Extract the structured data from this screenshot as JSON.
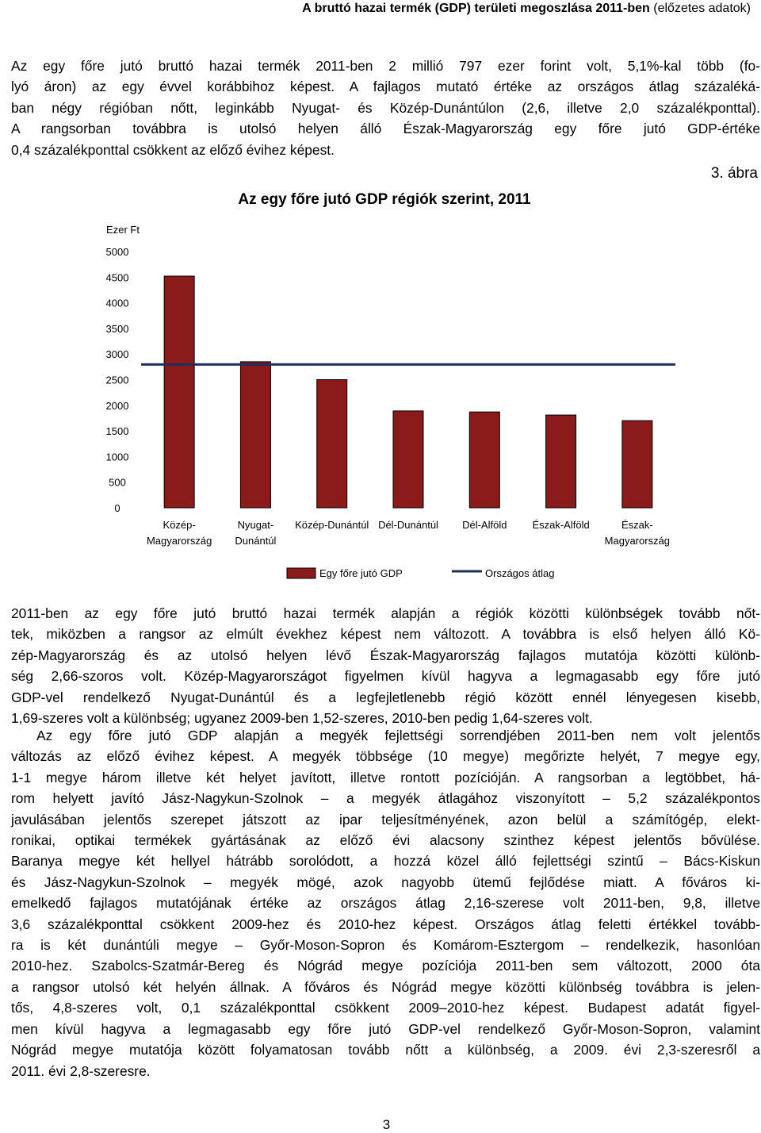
{
  "header": {
    "title": "A bruttó hazai termék (GDP) területi megoszlása 2011-ben",
    "subtitle": "(előzetes adatok)"
  },
  "intro_paragraph": [
    "Az egy főre jutó bruttó hazai termék 2011-ben 2 millió 797 ezer forint volt, 5,1%-kal több (fo-",
    "lyó áron) az egy évvel korábbihoz képest. A fajlagos mutató értéke az országos átlag százaléká-",
    "ban négy régióban nőtt, leginkább Nyugat- és Közép-Dunántúlon (2,6, illetve 2,0 százalékponttal).",
    "A rangsorban továbbra is utolsó helyen álló Észak-Magyarország egy főre jutó GDP-értéke",
    "0,4 százalékponttal csökkent az előző évihez képest."
  ],
  "figure": {
    "number": "3. ábra"
  },
  "chart_data": {
    "type": "bar",
    "title": "Az egy főre jutó GDP régiók szerint, 2011",
    "ylabel": "Ezer Ft",
    "ylim": [
      0,
      5000
    ],
    "yticks": [
      "5000",
      "4500",
      "4000",
      "3500",
      "3000",
      "2500",
      "2000",
      "1500",
      "1000",
      "500",
      "0"
    ],
    "categories": [
      [
        "Közép-",
        "Magyarország"
      ],
      [
        "Nyugat-",
        "Dunántúl"
      ],
      [
        "Közép-Dunántúl"
      ],
      [
        "Dél-Dunántúl"
      ],
      [
        "Dél-Alföld"
      ],
      [
        "Észak-Alföld"
      ],
      [
        "Észak-",
        "Magyarország"
      ]
    ],
    "series": [
      {
        "name": "Egy főre jutó GDP",
        "type": "bar",
        "color": "#8b1a1a",
        "values": [
          4520,
          2850,
          2500,
          1890,
          1870,
          1810,
          1700
        ]
      },
      {
        "name": "Országos átlag",
        "type": "line",
        "color": "#1f2f5a",
        "value": 2797
      }
    ],
    "grid": false,
    "legend": "bottom"
  },
  "body_paragraphs": [
    [
      "2011-ben az egy főre jutó bruttó hazai termék alapján a régiók közötti különbségek tovább nőt-",
      "tek, miközben a rangsor az elmúlt évekhez képest nem változott. A továbbra is első helyen álló Kö-",
      "zép-Magyarország és az utolsó helyen lévő Észak-Magyarország fajlagos mutatója közötti különb-",
      "ség 2,66-szoros volt. Közép-Magyarországot figyelmen kívül hagyva a legmagasabb egy főre jutó",
      "GDP-vel rendelkező Nyugat-Dunántúl és a legfejletlenebb régió között ennél lényegesen kisebb,",
      "1,69-szeres volt a különbség; ugyanez 2009-ben 1,52-szeres, 2010-ben pedig 1,64-szeres volt."
    ],
    [
      "Az egy főre jutó GDP alapján a megyék fejlettségi sorrendjében 2011-ben nem volt jelentős",
      "változás az előző évihez képest. A megyék többsége (10 megye) megőrizte helyét, 7 megye egy,",
      "1-1 megye három illetve két helyet javított, illetve rontott pozícióján. A rangsorban a legtöbbet, há-",
      "rom helyett javító Jász-Nagykun-Szolnok – a megyék átlagához viszonyított – 5,2 százalékpontos",
      "javulásában jelentős szerepet játszott az ipar teljesítményének, azon belül a számítógép, elekt-",
      "ronikai, optikai termékek gyártásának az előző évi alacsony szinthez képest jelentős bővülése.",
      "Baranya megye két hellyel hátrább sorolódott, a hozzá közel álló fejlettségi szintű – Bács-Kiskun",
      "és Jász-Nagykun-Szolnok – megyék mögé, azok nagyobb ütemű fejlődése miatt. A főváros ki-",
      "emelkedő fajlagos mutatójának értéke az országos átlag 2,16-szerese volt 2011-ben, 9,8, illetve",
      "3,6 százalékponttal csökkent 2009-hez és 2010-hez képest. Országos átlag feletti értékkel tovább-",
      "ra is két dunántúli megye – Győr-Moson-Sopron és Komárom-Esztergom – rendelkezik, hasonlóan",
      "2010-hez. Szabolcs-Szatmár-Bereg és Nógrád megye pozíciója 2011-ben sem változott, 2000 óta",
      "a rangsor utolsó két helyén állnak. A főváros és Nógrád megye közötti különbség továbbra is jelen-",
      "tős, 4,8-szeres volt, 0,1 százalékponttal csökkent 2009–2010-hez képest. Budapest adatát figyel-",
      "men kívül hagyva a legmagasabb egy főre jutó GDP-vel rendelkező Győr-Moson-Sopron, valamint",
      "Nógrád megye mutatója között folyamatosan tovább nőtt a különbség, a 2009. évi 2,3-szeresről a",
      "2011. évi 2,8-szeresre."
    ]
  ],
  "footer": {
    "page_number": "3"
  }
}
